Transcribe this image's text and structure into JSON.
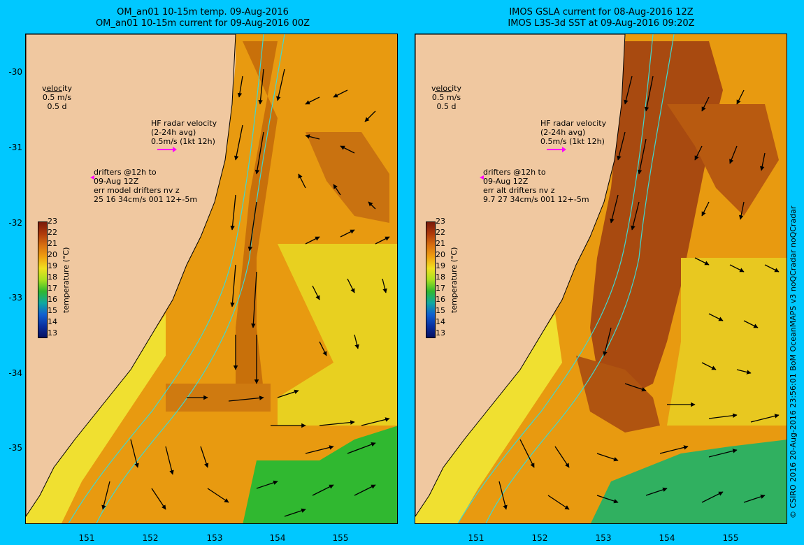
{
  "left_panel": {
    "title_line1": "OM_an01 10-15m temp. 09-Aug-2016",
    "title_line2": "OM_an01 10-15m current for 09-Aug-2016 00Z",
    "velocity_label": "velocity",
    "velocity_scale_1": "0.5 m/s",
    "velocity_scale_2": "0.5 d",
    "hf_line1": "HF radar velocity",
    "hf_line2": "(2-24h avg)",
    "hf_line3": "0.5m/s (1kt 12h)",
    "drift_line1": "drifters @12h to",
    "drift_line2": "09-Aug 12Z",
    "drift_line3": "err model drifters nv z",
    "drift_line4": "25 16 34cm/s 001 12+-5m"
  },
  "right_panel": {
    "title_line1": "IMOS GSLA current for 08-Aug-2016 12Z",
    "title_line2": "IMOS L3S-3d SST at 09-Aug-2016 09:20Z",
    "velocity_label": "velocity",
    "velocity_scale_1": "0.5 m/s",
    "velocity_scale_2": "0.5 d",
    "hf_line1": "HF radar velocity",
    "hf_line2": "(2-24h avg)",
    "hf_line3": "0.5m/s (1kt 12h)",
    "drift_line1": "drifters @12h to",
    "drift_line2": "09-Aug 12Z",
    "drift_line3": "err alt drifters nv z",
    "drift_line4": "9.7 27 34cm/s 001 12+-5m"
  },
  "axes": {
    "lat_ticks": [
      "-30",
      "-31",
      "-32",
      "-33",
      "-34",
      "-35"
    ],
    "lon_ticks": [
      "151",
      "152",
      "153",
      "154",
      "155"
    ]
  },
  "colorbar": {
    "ticks": [
      "23",
      "22",
      "21",
      "20",
      "19",
      "18",
      "17",
      "16",
      "15",
      "14",
      "13"
    ],
    "unit_label": "temperature (°C)"
  },
  "credit": "© CSIRO 2016   20-Aug-2016 23:56:01 BoM OceanMAPS v3 noQCradar noQCradar",
  "colors": {
    "background": "#00c8ff",
    "land": "#f0c8a0",
    "hf_arrow": "#ff00ff",
    "contour": "#40d8d0"
  }
}
